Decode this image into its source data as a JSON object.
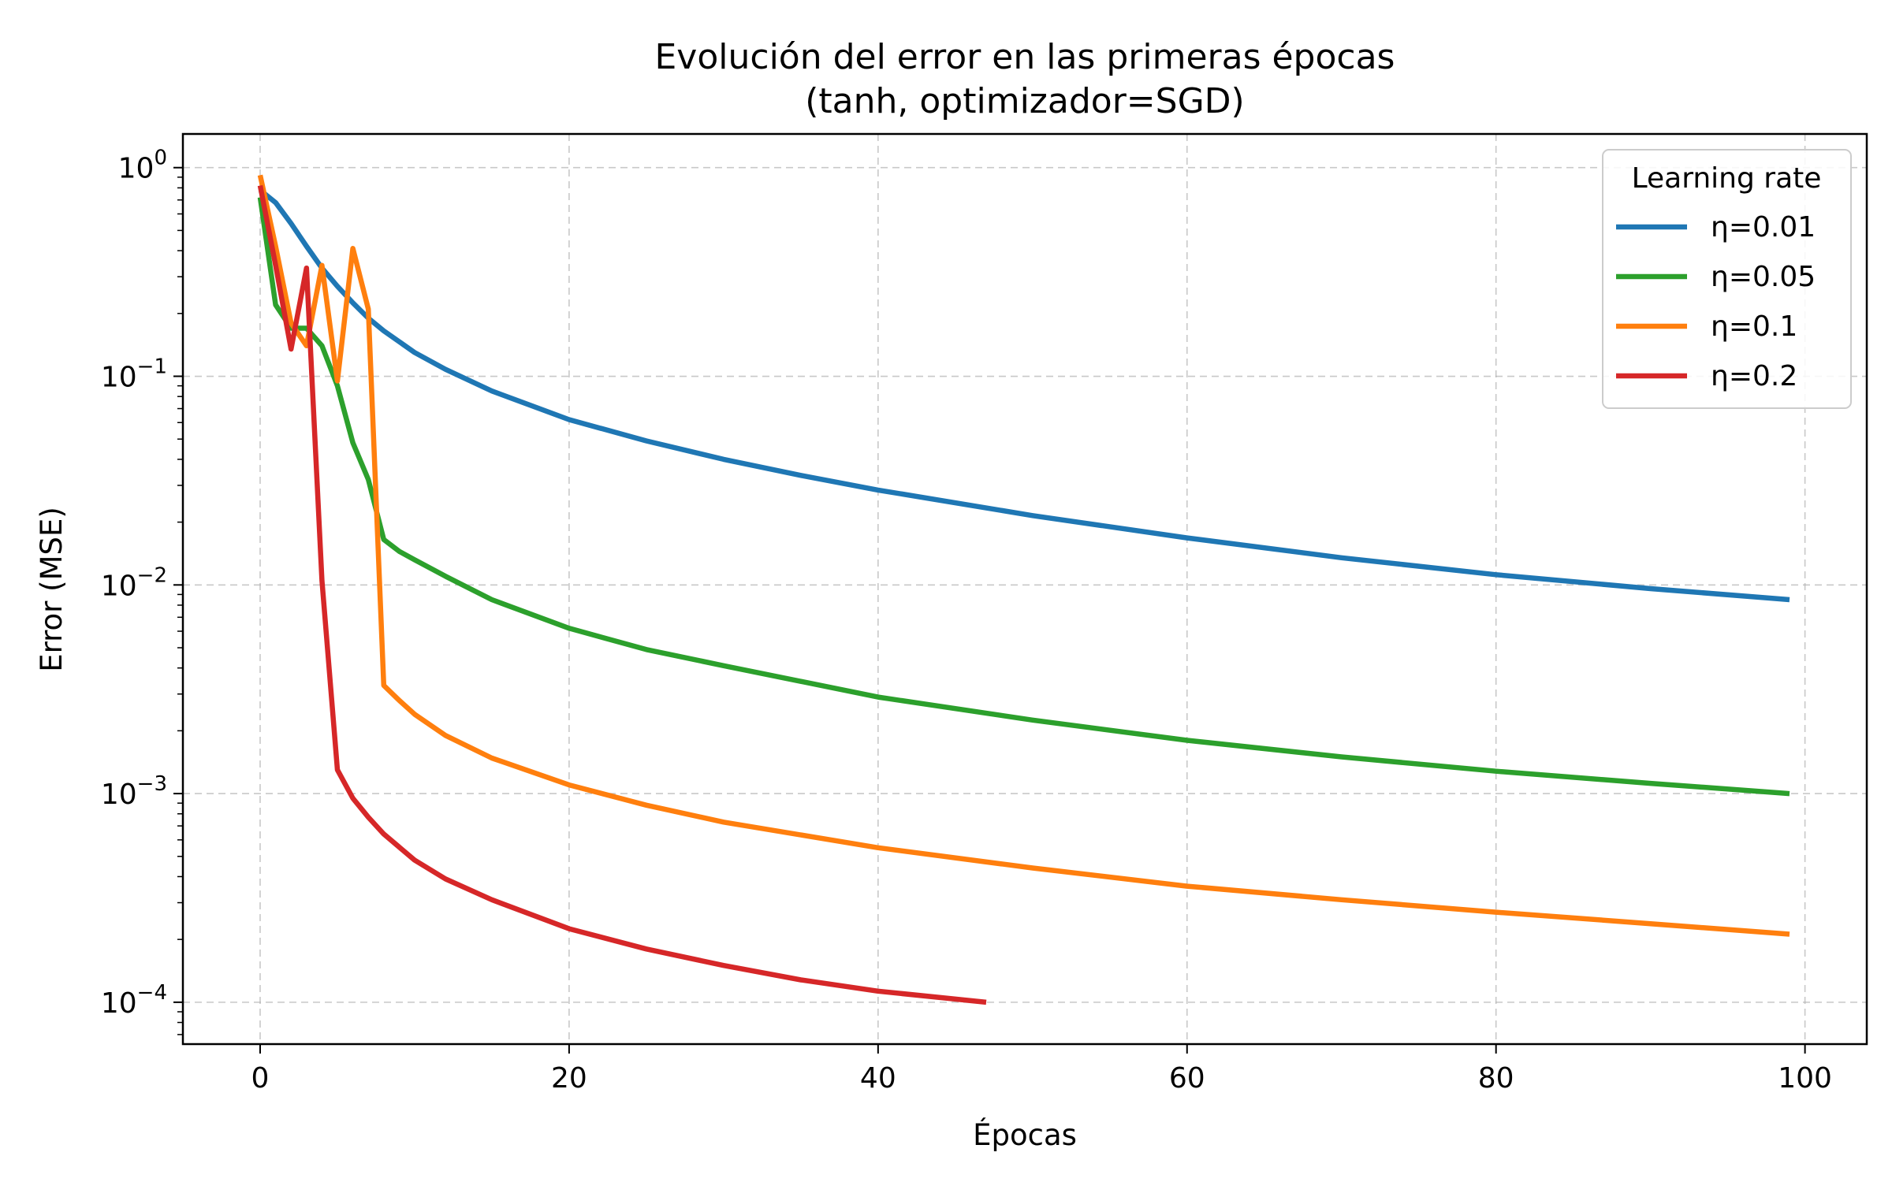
{
  "chart_data": {
    "type": "line",
    "title": "Evolución del error en las primeras épocas",
    "subtitle": "(tanh, optimizador=SGD)",
    "xlabel": "Épocas",
    "ylabel": "Error (MSE)",
    "xlim": [
      -5,
      104
    ],
    "ylim": [
      6.3e-05,
      1.45
    ],
    "yscale": "log",
    "grid": true,
    "x_ticks": [
      "0",
      "20",
      "40",
      "60",
      "80",
      "100"
    ],
    "y_ticks": [
      {
        "base": "10",
        "exp": "0",
        "value": 1
      },
      {
        "base": "10",
        "exp": "−1",
        "value": 0.1
      },
      {
        "base": "10",
        "exp": "−2",
        "value": 0.01
      },
      {
        "base": "10",
        "exp": "−3",
        "value": 0.001
      },
      {
        "base": "10",
        "exp": "−4",
        "value": 0.0001
      }
    ],
    "legend": {
      "title": "Learning rate",
      "position": "top-right"
    },
    "series": [
      {
        "name": "η=0.01",
        "color": "#1f77b4",
        "points": [
          [
            0,
            0.78
          ],
          [
            1,
            0.68
          ],
          [
            2,
            0.54
          ],
          [
            3,
            0.42
          ],
          [
            4,
            0.33
          ],
          [
            5,
            0.27
          ],
          [
            6,
            0.225
          ],
          [
            7,
            0.19
          ],
          [
            8,
            0.165
          ],
          [
            10,
            0.13
          ],
          [
            12,
            0.108
          ],
          [
            15,
            0.085
          ],
          [
            20,
            0.062
          ],
          [
            25,
            0.049
          ],
          [
            30,
            0.04
          ],
          [
            35,
            0.0335
          ],
          [
            40,
            0.0285
          ],
          [
            50,
            0.0215
          ],
          [
            60,
            0.0168
          ],
          [
            70,
            0.0135
          ],
          [
            80,
            0.0112
          ],
          [
            90,
            0.0096
          ],
          [
            99,
            0.0085
          ]
        ]
      },
      {
        "name": "η=0.05",
        "color": "#2ca02c",
        "points": [
          [
            0,
            0.72
          ],
          [
            1,
            0.22
          ],
          [
            2,
            0.17
          ],
          [
            3,
            0.17
          ],
          [
            4,
            0.14
          ],
          [
            5,
            0.09
          ],
          [
            6,
            0.048
          ],
          [
            7,
            0.032
          ],
          [
            8,
            0.0165
          ],
          [
            9,
            0.0145
          ],
          [
            10,
            0.0132
          ],
          [
            12,
            0.011
          ],
          [
            15,
            0.0085
          ],
          [
            20,
            0.0062
          ],
          [
            25,
            0.0049
          ],
          [
            30,
            0.0041
          ],
          [
            40,
            0.0029
          ],
          [
            50,
            0.00225
          ],
          [
            60,
            0.0018
          ],
          [
            70,
            0.0015
          ],
          [
            80,
            0.00128
          ],
          [
            90,
            0.00112
          ],
          [
            99,
            0.001
          ]
        ]
      },
      {
        "name": "η=0.1",
        "color": "#ff7f0e",
        "points": [
          [
            0,
            0.92
          ],
          [
            1,
            0.42
          ],
          [
            2,
            0.18
          ],
          [
            3,
            0.14
          ],
          [
            4,
            0.34
          ],
          [
            5,
            0.095
          ],
          [
            6,
            0.41
          ],
          [
            7,
            0.21
          ],
          [
            8,
            0.0033
          ],
          [
            9,
            0.0028
          ],
          [
            10,
            0.0024
          ],
          [
            12,
            0.0019
          ],
          [
            15,
            0.00148
          ],
          [
            20,
            0.0011
          ],
          [
            25,
            0.00088
          ],
          [
            30,
            0.00073
          ],
          [
            40,
            0.00055
          ],
          [
            50,
            0.00044
          ],
          [
            60,
            0.00036
          ],
          [
            70,
            0.00031
          ],
          [
            80,
            0.00027
          ],
          [
            90,
            0.000238
          ],
          [
            99,
            0.000212
          ]
        ]
      },
      {
        "name": "η=0.2",
        "color": "#d62728",
        "points": [
          [
            0,
            0.82
          ],
          [
            1,
            0.34
          ],
          [
            2,
            0.135
          ],
          [
            3,
            0.33
          ],
          [
            4,
            0.0105
          ],
          [
            5,
            0.0013
          ],
          [
            6,
            0.00095
          ],
          [
            7,
            0.00077
          ],
          [
            8,
            0.00064
          ],
          [
            10,
            0.00048
          ],
          [
            12,
            0.00039
          ],
          [
            15,
            0.00031
          ],
          [
            20,
            0.000225
          ],
          [
            25,
            0.00018
          ],
          [
            30,
            0.00015
          ],
          [
            35,
            0.000128
          ],
          [
            40,
            0.000113
          ],
          [
            47,
            0.0001
          ]
        ]
      }
    ]
  }
}
